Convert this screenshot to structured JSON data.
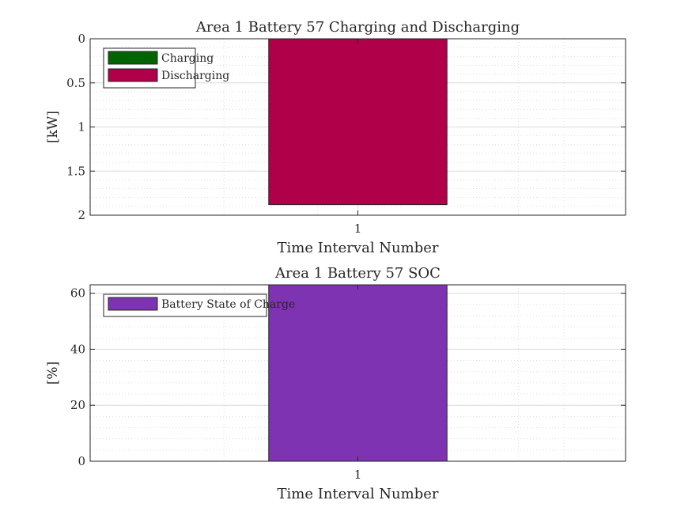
{
  "chart_data": [
    {
      "type": "bar",
      "title": "Area 1 Battery 57 Charging and Discharging",
      "xlabel": "Time Interval Number",
      "ylabel": "[kW]",
      "categories": [
        "1"
      ],
      "y_reversed": true,
      "ylim": [
        0,
        2
      ],
      "yticks": [
        "0",
        "0.5",
        "1",
        "1.5",
        "2"
      ],
      "ytick_values": [
        0,
        0.5,
        1,
        1.5,
        2
      ],
      "grid": true,
      "minor_grid": true,
      "legend_location": "top-left",
      "series": [
        {
          "name": "Charging",
          "values": [
            0
          ],
          "color": "#006400"
        },
        {
          "name": "Discharging",
          "values": [
            1.88
          ],
          "color": "#B0004A"
        }
      ]
    },
    {
      "type": "bar",
      "title": "Area 1 Battery 57 SOC",
      "xlabel": "Time Interval Number",
      "ylabel": "[%]",
      "categories": [
        "1"
      ],
      "ylim": [
        0,
        63
      ],
      "yticks": [
        "0",
        "20",
        "40",
        "60"
      ],
      "ytick_values": [
        0,
        20,
        40,
        60
      ],
      "grid": true,
      "minor_grid": true,
      "legend_location": "top-left",
      "series": [
        {
          "name": "Battery State of Charge",
          "values": [
            63
          ],
          "color": "#7E33B2"
        }
      ]
    }
  ]
}
